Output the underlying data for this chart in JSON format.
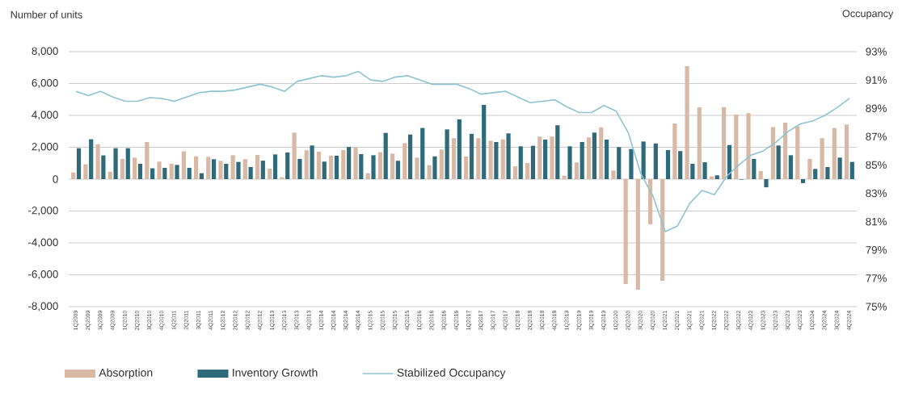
{
  "chart_data": {
    "type": "bar",
    "ylabel": "Number of units",
    "y2label": "Occupancy",
    "categories": [
      "1Q2009",
      "2Q2009",
      "3Q2009",
      "4Q2009",
      "1Q2010",
      "2Q2010",
      "3Q2010",
      "4Q2010",
      "1Q2011",
      "2Q2011",
      "3Q2011",
      "4Q2011",
      "1Q2012",
      "2Q2012",
      "3Q2012",
      "4Q2012",
      "1Q2013",
      "2Q2013",
      "3Q2013",
      "4Q2013",
      "1Q2014",
      "2Q2014",
      "3Q2014",
      "4Q2014",
      "1Q2015",
      "2Q2015",
      "3Q2015",
      "4Q2015",
      "1Q2016",
      "2Q2016",
      "3Q2016",
      "4Q2016",
      "1Q2017",
      "2Q2017",
      "3Q2017",
      "4Q2017",
      "1Q2018",
      "2Q2018",
      "3Q2018",
      "4Q2018",
      "1Q2019",
      "2Q2019",
      "3Q2019",
      "4Q2019",
      "1Q2020",
      "2Q2020",
      "3Q2020",
      "4Q2020",
      "1Q2021",
      "2Q2021",
      "3Q2021",
      "4Q2021",
      "1Q2022",
      "2Q2022",
      "3Q2022",
      "4Q2022",
      "1Q2023",
      "2Q2023",
      "3Q2023",
      "4Q2023",
      "1Q2024",
      "2Q2024",
      "3Q2024",
      "4Q2024"
    ],
    "series": [
      {
        "name": "Absorption",
        "color": "#d8b9a6",
        "values": [
          420,
          930,
          2190,
          460,
          1270,
          1350,
          2330,
          1100,
          960,
          1740,
          1430,
          1400,
          1150,
          1500,
          1250,
          1520,
          660,
          120,
          2920,
          1810,
          1720,
          1470,
          1820,
          1970,
          370,
          1690,
          1600,
          2260,
          1350,
          880,
          1860,
          2570,
          1420,
          2570,
          2410,
          2500,
          810,
          1010,
          2670,
          2670,
          220,
          1050,
          2620,
          3250,
          540,
          -6580,
          -6940,
          -2840,
          -6380,
          3490,
          7090,
          4510,
          170,
          4520,
          4050,
          4140,
          510,
          3260,
          3540,
          3320,
          1270,
          2570,
          3210,
          3430
        ]
      },
      {
        "name": "Inventory Growth",
        "color": "#2e6a79",
        "values": [
          1940,
          2500,
          1490,
          1940,
          1940,
          960,
          680,
          710,
          890,
          710,
          370,
          1250,
          960,
          1080,
          760,
          1160,
          1550,
          1670,
          1270,
          2110,
          1100,
          1470,
          2020,
          1570,
          1500,
          2900,
          1150,
          2800,
          3210,
          1430,
          3120,
          3750,
          2840,
          4660,
          2330,
          2870,
          2060,
          2090,
          2480,
          3380,
          2060,
          2330,
          2920,
          2480,
          2010,
          1890,
          2360,
          2240,
          1820,
          1760,
          960,
          1060,
          240,
          2140,
          -30,
          1270,
          -510,
          2110,
          1500,
          -250,
          640,
          760,
          1350,
          1080
        ]
      },
      {
        "name": "Stabilized Occupancy",
        "type": "line",
        "axis": "y2",
        "color": "#8fc4d0",
        "values": [
          90.2,
          89.9,
          90.2,
          89.8,
          89.5,
          89.5,
          89.75,
          89.7,
          89.5,
          89.8,
          90.1,
          90.2,
          90.2,
          90.3,
          90.5,
          90.7,
          90.5,
          90.2,
          90.9,
          91.1,
          91.3,
          91.2,
          91.3,
          91.6,
          91.0,
          90.9,
          91.2,
          91.3,
          91.0,
          90.7,
          90.7,
          90.7,
          90.4,
          90.0,
          90.1,
          90.2,
          89.8,
          89.4,
          89.5,
          89.6,
          89.1,
          88.7,
          88.7,
          89.2,
          88.8,
          87.25,
          84.4,
          82.8,
          80.3,
          80.7,
          82.3,
          83.2,
          82.9,
          84.2,
          85.0,
          85.7,
          86.0,
          86.6,
          87.35,
          87.9,
          88.1,
          88.5,
          89.05,
          89.7
        ]
      }
    ],
    "ylim": [
      -8000,
      8000
    ],
    "yticks": [
      {
        "value": -8000,
        "label": "-8,000"
      },
      {
        "value": -6000,
        "label": "-6,000"
      },
      {
        "value": -4000,
        "label": "-4,000"
      },
      {
        "value": -2000,
        "label": "-2,000"
      },
      0,
      {
        "value": 2000,
        "label": "2,000"
      },
      {
        "value": 4000,
        "label": "4,000"
      },
      {
        "value": 6000,
        "label": "6,000"
      },
      {
        "value": 8000,
        "label": "8,000"
      }
    ],
    "y2lim": [
      75,
      93
    ],
    "y2ticks": [
      {
        "value": 75,
        "label": "75%"
      },
      {
        "value": 77,
        "label": "77%"
      },
      {
        "value": 79,
        "label": "79%"
      },
      {
        "value": 81,
        "label": "81%"
      },
      {
        "value": 83,
        "label": "83%"
      },
      {
        "value": 85,
        "label": "85%"
      },
      {
        "value": 87,
        "label": "87%"
      },
      {
        "value": 89,
        "label": "89%"
      },
      {
        "value": 91,
        "label": "91%"
      },
      {
        "value": 93,
        "label": "93%"
      }
    ],
    "grid": "y",
    "legend": "bottom"
  }
}
